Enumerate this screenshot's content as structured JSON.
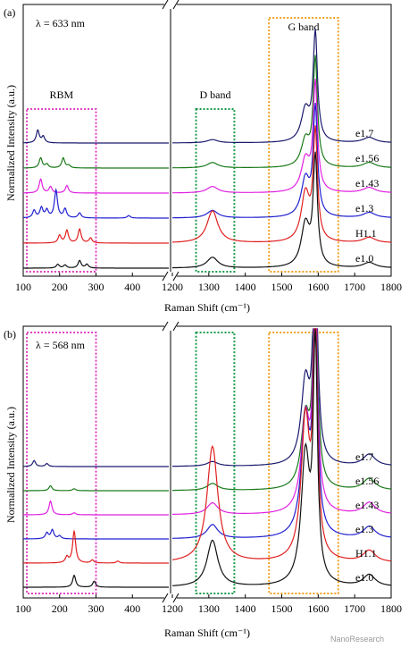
{
  "chart_data": [
    {
      "type": "line",
      "panel_label": "(a)",
      "wavelength_label": "λ = 633 nm",
      "xlabel": "Raman Shift (cm⁻¹)",
      "ylabel": "Normalized Intensity (a.u.)",
      "x_axis_break": true,
      "x_segments": [
        {
          "xlim": [
            100,
            500
          ],
          "ticks": [
            100,
            200,
            300,
            400
          ]
        },
        {
          "xlim": [
            1200,
            1800
          ],
          "ticks": [
            1200,
            1300,
            1400,
            1500,
            1600,
            1700,
            1800
          ]
        }
      ],
      "boxes": [
        {
          "label": "RBM",
          "xrange": [
            110,
            300
          ],
          "color": "#e040c0"
        },
        {
          "label": "D band",
          "xrange": [
            1265,
            1370
          ],
          "color": "#1a9a4a"
        },
        {
          "label": "G band",
          "xrange": [
            1465,
            1655
          ],
          "color": "#f0a020"
        }
      ],
      "series": [
        {
          "name": "e1.7",
          "color": "#1a1a6e",
          "rbm_peaks": [
            [
              140,
              0.5
            ],
            [
              155,
              0.25
            ]
          ],
          "d_height": 0.03,
          "g_height": 1.0,
          "g_shoulder": 0.3
        },
        {
          "name": "e1.56",
          "color": "#1a7a1a",
          "rbm_peaks": [
            [
              148,
              0.4
            ],
            [
              165,
              0.15
            ],
            [
              210,
              0.4
            ],
            [
              225,
              0.1
            ]
          ],
          "d_height": 0.05,
          "g_height": 1.0,
          "g_shoulder": 0.25
        },
        {
          "name": "e1.43",
          "color": "#e020e0",
          "rbm_peaks": [
            [
              148,
              0.55
            ],
            [
              175,
              0.25
            ],
            [
              220,
              0.3
            ]
          ],
          "d_height": 0.06,
          "g_height": 1.0,
          "g_shoulder": 0.3
        },
        {
          "name": "e1.3",
          "color": "#2020d0",
          "rbm_peaks": [
            [
              130,
              0.3
            ],
            [
              150,
              0.4
            ],
            [
              165,
              0.3
            ],
            [
              190,
              1.1
            ],
            [
              215,
              0.35
            ],
            [
              255,
              0.2
            ],
            [
              390,
              0.1
            ]
          ],
          "d_height": 0.07,
          "g_height": 1.0,
          "g_shoulder": 0.35
        },
        {
          "name": "H1.1",
          "color": "#e02020",
          "rbm_peaks": [
            [
              200,
              0.3
            ],
            [
              220,
              0.5
            ],
            [
              255,
              0.55
            ],
            [
              285,
              0.2
            ]
          ],
          "d_height": 0.3,
          "g_height": 1.0,
          "g_shoulder": 0.45
        },
        {
          "name": "e1.0",
          "color": "#111111",
          "rbm_peaks": [
            [
              195,
              0.15
            ],
            [
              215,
              0.12
            ],
            [
              255,
              0.3
            ],
            [
              275,
              0.15
            ]
          ],
          "d_height": 0.1,
          "g_height": 1.0,
          "g_shoulder": 0.4
        }
      ]
    },
    {
      "type": "line",
      "panel_label": "(b)",
      "wavelength_label": "λ = 568 nm",
      "xlabel": "Raman Shift (cm⁻¹)",
      "ylabel": "Normalized Intensity (a.u.)",
      "x_axis_break": true,
      "x_segments": [
        {
          "xlim": [
            100,
            500
          ],
          "ticks": [
            100,
            200,
            300,
            400
          ]
        },
        {
          "xlim": [
            1200,
            1800
          ],
          "ticks": [
            1200,
            1300,
            1400,
            1500,
            1600,
            1700,
            1800
          ]
        }
      ],
      "boxes": [
        {
          "label": "",
          "xrange": [
            110,
            300
          ],
          "color": "#e040c0"
        },
        {
          "label": "",
          "xrange": [
            1265,
            1370
          ],
          "color": "#1a9a4a"
        },
        {
          "label": "",
          "xrange": [
            1465,
            1655
          ],
          "color": "#f0a020"
        }
      ],
      "series": [
        {
          "name": "e1.7",
          "color": "#1a1a6e",
          "rbm_peaks": [
            [
              130,
              0.3
            ],
            [
              165,
              0.15
            ]
          ],
          "d_height": 0.02,
          "g_height": 1.0,
          "g_shoulder": 0.35
        },
        {
          "name": "e1.56",
          "color": "#1a7a1a",
          "rbm_peaks": [
            [
              175,
              0.25
            ],
            [
              240,
              0.1
            ]
          ],
          "d_height": 0.03,
          "g_height": 1.0,
          "g_shoulder": 0.3
        },
        {
          "name": "e1.43",
          "color": "#e020e0",
          "rbm_peaks": [
            [
              175,
              0.7
            ],
            [
              240,
              0.1
            ]
          ],
          "d_height": 0.05,
          "g_height": 1.0,
          "g_shoulder": 0.4
        },
        {
          "name": "e1.3",
          "color": "#2020d0",
          "rbm_peaks": [
            [
              165,
              0.3
            ],
            [
              180,
              0.45
            ],
            [
              200,
              0.15
            ]
          ],
          "d_height": 0.06,
          "g_height": 1.0,
          "g_shoulder": 0.5
        },
        {
          "name": "H1.1",
          "color": "#e02020",
          "rbm_peaks": [
            [
              220,
              0.3
            ],
            [
              240,
              1.6
            ],
            [
              290,
              0.15
            ],
            [
              360,
              0.1
            ]
          ],
          "d_height": 0.5,
          "g_height": 1.0,
          "g_shoulder": 0.6
        },
        {
          "name": "e1.0",
          "color": "#111111",
          "rbm_peaks": [
            [
              240,
              0.6
            ],
            [
              295,
              0.3
            ]
          ],
          "d_height": 0.2,
          "g_height": 1.0,
          "g_shoulder": 0.55
        }
      ]
    }
  ],
  "watermark": "NanoResearch"
}
